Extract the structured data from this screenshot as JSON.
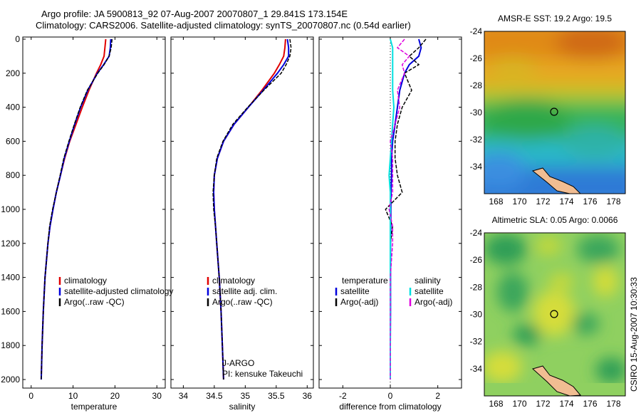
{
  "header": {
    "line1": "Argo profile: JA 5900813_92 07-Aug-2007 20070807_1 29.841S 173.154E",
    "line2": "Climatology: CARS2006. Satellite-adjusted climatology: synTS_20070807.nc (0.54d earlier)"
  },
  "depth_ticks": [
    "0",
    "200",
    "400",
    "600",
    "800",
    "1000",
    "1200",
    "1400",
    "1600",
    "1800",
    "2000"
  ],
  "colors": {
    "climatology": "#e00000",
    "satellite": "#0000dd",
    "argo": "#000000",
    "sat_salinity": "#00e0e0",
    "argo_salinity": "#e000e0"
  },
  "chart_data": [
    {
      "type": "line",
      "xlabel": "temperature",
      "xticks": [
        "0",
        "10",
        "20",
        "30"
      ],
      "xlim": [
        -2,
        32
      ],
      "ylim": [
        0,
        2050
      ],
      "y_reversed": true,
      "legend": [
        "climatology",
        "satellite-adjusted climatology",
        "Argo(..raw -QC)"
      ],
      "series": [
        {
          "name": "climatology",
          "color": "#e00000",
          "depth": [
            0,
            50,
            100,
            150,
            200,
            300,
            400,
            500,
            600,
            700,
            800,
            900,
            1000,
            1100,
            1200,
            1400,
            1600,
            1800,
            2000
          ],
          "values": [
            17.8,
            17.6,
            17.4,
            16.6,
            15.6,
            13.8,
            12.2,
            10.7,
            9.2,
            8.0,
            7.0,
            6.0,
            5.2,
            4.5,
            4.0,
            3.3,
            2.9,
            2.6,
            2.4
          ]
        },
        {
          "name": "satellite-adjusted climatology",
          "color": "#0000dd",
          "depth": [
            0,
            50,
            100,
            150,
            200,
            300,
            400,
            500,
            600,
            700,
            800,
            900,
            1000,
            1100,
            1200,
            1400,
            1600,
            1800,
            2000
          ],
          "values": [
            19.0,
            18.9,
            18.6,
            17.3,
            15.8,
            13.5,
            11.8,
            10.4,
            9.1,
            7.9,
            7.0,
            6.0,
            5.2,
            4.5,
            4.0,
            3.3,
            2.9,
            2.6,
            2.4
          ]
        },
        {
          "name": "Argo(..raw -QC)",
          "color": "#000000",
          "depth": [
            0,
            50,
            100,
            150,
            200,
            300,
            400,
            500,
            600,
            700,
            800,
            900,
            1000,
            1100,
            1200,
            1400,
            1600,
            1800,
            2000
          ],
          "values": [
            19.3,
            19.1,
            18.6,
            17.4,
            15.9,
            13.4,
            11.7,
            10.3,
            9.0,
            7.8,
            6.9,
            6.0,
            5.1,
            4.4,
            4.0,
            3.3,
            2.9,
            2.6,
            2.4
          ]
        }
      ]
    },
    {
      "type": "line",
      "xlabel": "salinity",
      "xticks": [
        "34",
        "34.5",
        "35",
        "35.5",
        "36"
      ],
      "xlim": [
        33.8,
        36.1
      ],
      "ylim": [
        0,
        2050
      ],
      "y_reversed": true,
      "legend": [
        "climatology",
        "satellite adj. clim.",
        "Argo(..raw -QC)"
      ],
      "annotation": [
        "J-ARGO",
        "PI: kensuke Takeuchi"
      ],
      "series": [
        {
          "name": "climatology",
          "color": "#e00000",
          "depth": [
            0,
            50,
            100,
            150,
            200,
            300,
            400,
            500,
            600,
            700,
            800,
            900,
            1000,
            1100,
            1200,
            1400,
            1600,
            1800,
            2000
          ],
          "values": [
            35.65,
            35.64,
            35.62,
            35.55,
            35.47,
            35.27,
            35.05,
            34.82,
            34.65,
            34.55,
            34.5,
            34.49,
            34.5,
            34.52,
            34.54,
            34.58,
            34.61,
            34.63,
            34.65
          ]
        },
        {
          "name": "satellite adj. clim.",
          "color": "#0000dd",
          "depth": [
            0,
            50,
            100,
            150,
            200,
            300,
            400,
            500,
            600,
            700,
            800,
            900,
            1000,
            1100,
            1200,
            1400,
            1600,
            1800,
            2000
          ],
          "values": [
            35.68,
            35.7,
            35.7,
            35.62,
            35.52,
            35.29,
            35.05,
            34.82,
            34.65,
            34.55,
            34.5,
            34.49,
            34.5,
            34.52,
            34.54,
            34.58,
            34.61,
            34.63,
            34.65
          ]
        },
        {
          "name": "Argo(..raw -QC)",
          "color": "#000000",
          "depth": [
            0,
            50,
            100,
            150,
            200,
            300,
            400,
            500,
            600,
            700,
            800,
            900,
            1000,
            1100,
            1200,
            1400,
            1600,
            1800,
            2000
          ],
          "values": [
            35.72,
            35.74,
            35.72,
            35.66,
            35.58,
            35.3,
            35.04,
            34.8,
            34.64,
            34.54,
            34.5,
            34.48,
            34.49,
            34.52,
            34.54,
            34.58,
            34.61,
            34.63,
            34.65
          ]
        }
      ]
    },
    {
      "type": "line",
      "xlabel": "difference from climatology",
      "xticks": [
        "-2",
        "0",
        "2"
      ],
      "xlim": [
        -3.0,
        3.0
      ],
      "ylim": [
        0,
        2050
      ],
      "y_reversed": true,
      "legend_temperature": {
        "header": "temperature",
        "items": [
          "satellite",
          "Argo(-adj)"
        ]
      },
      "legend_salinity": {
        "header": "salinity",
        "items": [
          "satellite",
          "Argo(-adj)"
        ]
      },
      "series": [
        {
          "name": "satellite",
          "group": "temperature",
          "color": "#0000dd",
          "depth": [
            0,
            50,
            100,
            150,
            200,
            300,
            400,
            500,
            600,
            700,
            800,
            900,
            1000,
            1100,
            1200,
            1400,
            1600,
            1800,
            2000
          ],
          "values": [
            1.2,
            1.3,
            1.2,
            0.8,
            0.6,
            0.4,
            0.3,
            0.2,
            0.1,
            0.05,
            0.05,
            0.03,
            0.02,
            0.02,
            0.01,
            0.01,
            0.01,
            0.0,
            0.0
          ]
        },
        {
          "name": "Argo(-adj)",
          "group": "temperature",
          "color": "#000000",
          "depth": [
            0,
            50,
            100,
            150,
            200,
            300,
            400,
            500,
            600,
            700,
            800,
            900,
            1000,
            1100,
            1200,
            1400,
            1600,
            1800,
            2000
          ],
          "values": [
            1.5,
            1.2,
            0.8,
            1.2,
            0.6,
            0.9,
            0.5,
            0.3,
            0.2,
            0.2,
            0.3,
            0.5,
            -0.2,
            0.1,
            0.0,
            0.0,
            0.0,
            0.0,
            0.0
          ]
        },
        {
          "name": "satellite",
          "group": "salinity",
          "color": "#00e0e0",
          "depth": [
            0,
            50,
            100,
            150,
            200,
            300,
            400,
            500,
            600,
            700,
            800,
            900,
            1000,
            1100,
            1200,
            1400,
            1600,
            1800,
            2000
          ],
          "values": [
            0.0,
            0.1,
            0.1,
            0.1,
            0.1,
            0.1,
            0.15,
            0.1,
            0.05,
            0.0,
            -0.05,
            0.0,
            0.0,
            0.0,
            0.0,
            0.0,
            0.0,
            0.0,
            0.0
          ]
        },
        {
          "name": "Argo(-adj)",
          "group": "salinity",
          "color": "#e000e0",
          "depth": [
            0,
            50,
            100,
            150,
            200,
            300,
            400,
            500,
            600,
            700,
            800,
            900,
            1000,
            1100,
            1200,
            1400,
            1600,
            1800,
            2000
          ],
          "values": [
            0.6,
            0.3,
            0.8,
            0.5,
            0.6,
            0.3,
            0.4,
            0.2,
            0.0,
            0.1,
            0.1,
            0.1,
            -0.05,
            0.1,
            0.1,
            0.0,
            0.0,
            0.0,
            0.0
          ]
        }
      ]
    },
    {
      "type": "heatmap",
      "title": "AMSR-E SST: 19.2 Argo: 19.5",
      "xticks": [
        "168",
        "170",
        "172",
        "174",
        "176",
        "178"
      ],
      "yticks": [
        "-24",
        "-26",
        "-28",
        "-30",
        "-32",
        "-34"
      ],
      "xlim": [
        167.0,
        179.0
      ],
      "ylim": [
        -36.0,
        -24.0
      ],
      "marker": {
        "lon": 173.154,
        "lat": -29.841
      }
    },
    {
      "type": "heatmap",
      "title": "Altimetric SLA: 0.05 Argo: 0.0066",
      "xticks": [
        "168",
        "170",
        "172",
        "174",
        "176",
        "178"
      ],
      "yticks": [
        "-24",
        "-26",
        "-28",
        "-30",
        "-32",
        "-34"
      ],
      "xlim": [
        167.0,
        179.0
      ],
      "ylim": [
        -36.0,
        -24.0
      ],
      "marker": {
        "lon": 173.154,
        "lat": -29.841
      }
    }
  ],
  "footer_side": "CSIRO 15-Aug-2007 10:30:33"
}
